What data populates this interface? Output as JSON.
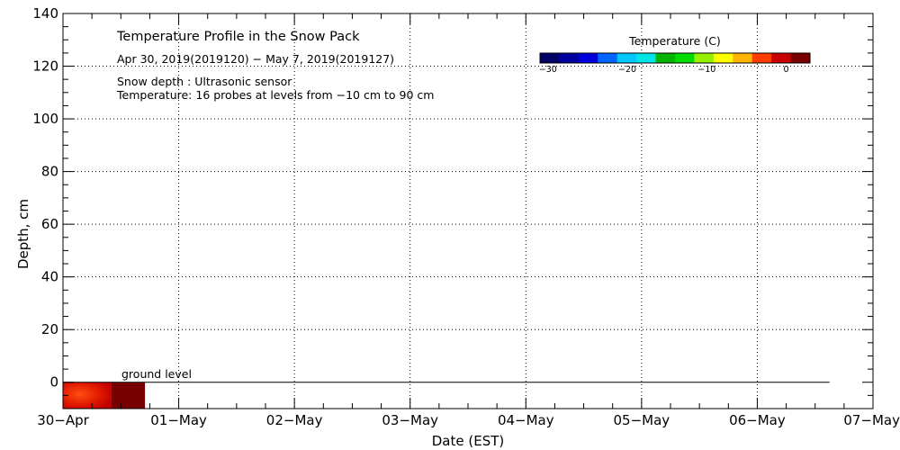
{
  "chart_data": {
    "type": "heatmap",
    "title": "Temperature Profile in the Snow Pack",
    "subtitle": "Apr 30, 2019(2019120) − May  7, 2019(2019127)",
    "annotations": [
      "Snow depth : Ultrasonic sensor",
      "Temperature: 16 probes at levels from −10 cm to 90 cm"
    ],
    "xlabel": "Date (EST)",
    "ylabel": "Depth, cm",
    "x_ticks": [
      "30−Apr",
      "01−May",
      "02−May",
      "03−May",
      "04−May",
      "05−May",
      "06−May",
      "07−May"
    ],
    "y_ticks": [
      "0",
      "20",
      "40",
      "60",
      "80",
      "100",
      "120",
      "140"
    ],
    "xlim": [
      "2019-04-30",
      "2019-05-07"
    ],
    "ylim": [
      -10,
      140
    ],
    "grid": true,
    "ground_level_label": "ground level",
    "snow_depth_cm": 0,
    "snow_depth_end": "2019-05-06T15:00",
    "temperature_cells": [
      {
        "start": "2019-04-30T00:00",
        "end": "2019-04-30T10:00",
        "depth_from": -10,
        "depth_to": 0,
        "temp_c": 0.5
      },
      {
        "start": "2019-04-30T10:00",
        "end": "2019-04-30T17:00",
        "depth_from": -10,
        "depth_to": 0,
        "temp_c": 2.5
      }
    ],
    "colorbar": {
      "title": "Temperature (C)",
      "ticks": [
        "−30",
        "−20",
        "−10",
        "0"
      ],
      "range": [
        -31,
        3
      ],
      "colors": [
        "#000064",
        "#0000a0",
        "#0000dc",
        "#0064ff",
        "#00c8ff",
        "#00e6e6",
        "#00b400",
        "#00dc00",
        "#96f000",
        "#ffff00",
        "#ffb400",
        "#ff3c00",
        "#c80000",
        "#780000"
      ]
    }
  }
}
